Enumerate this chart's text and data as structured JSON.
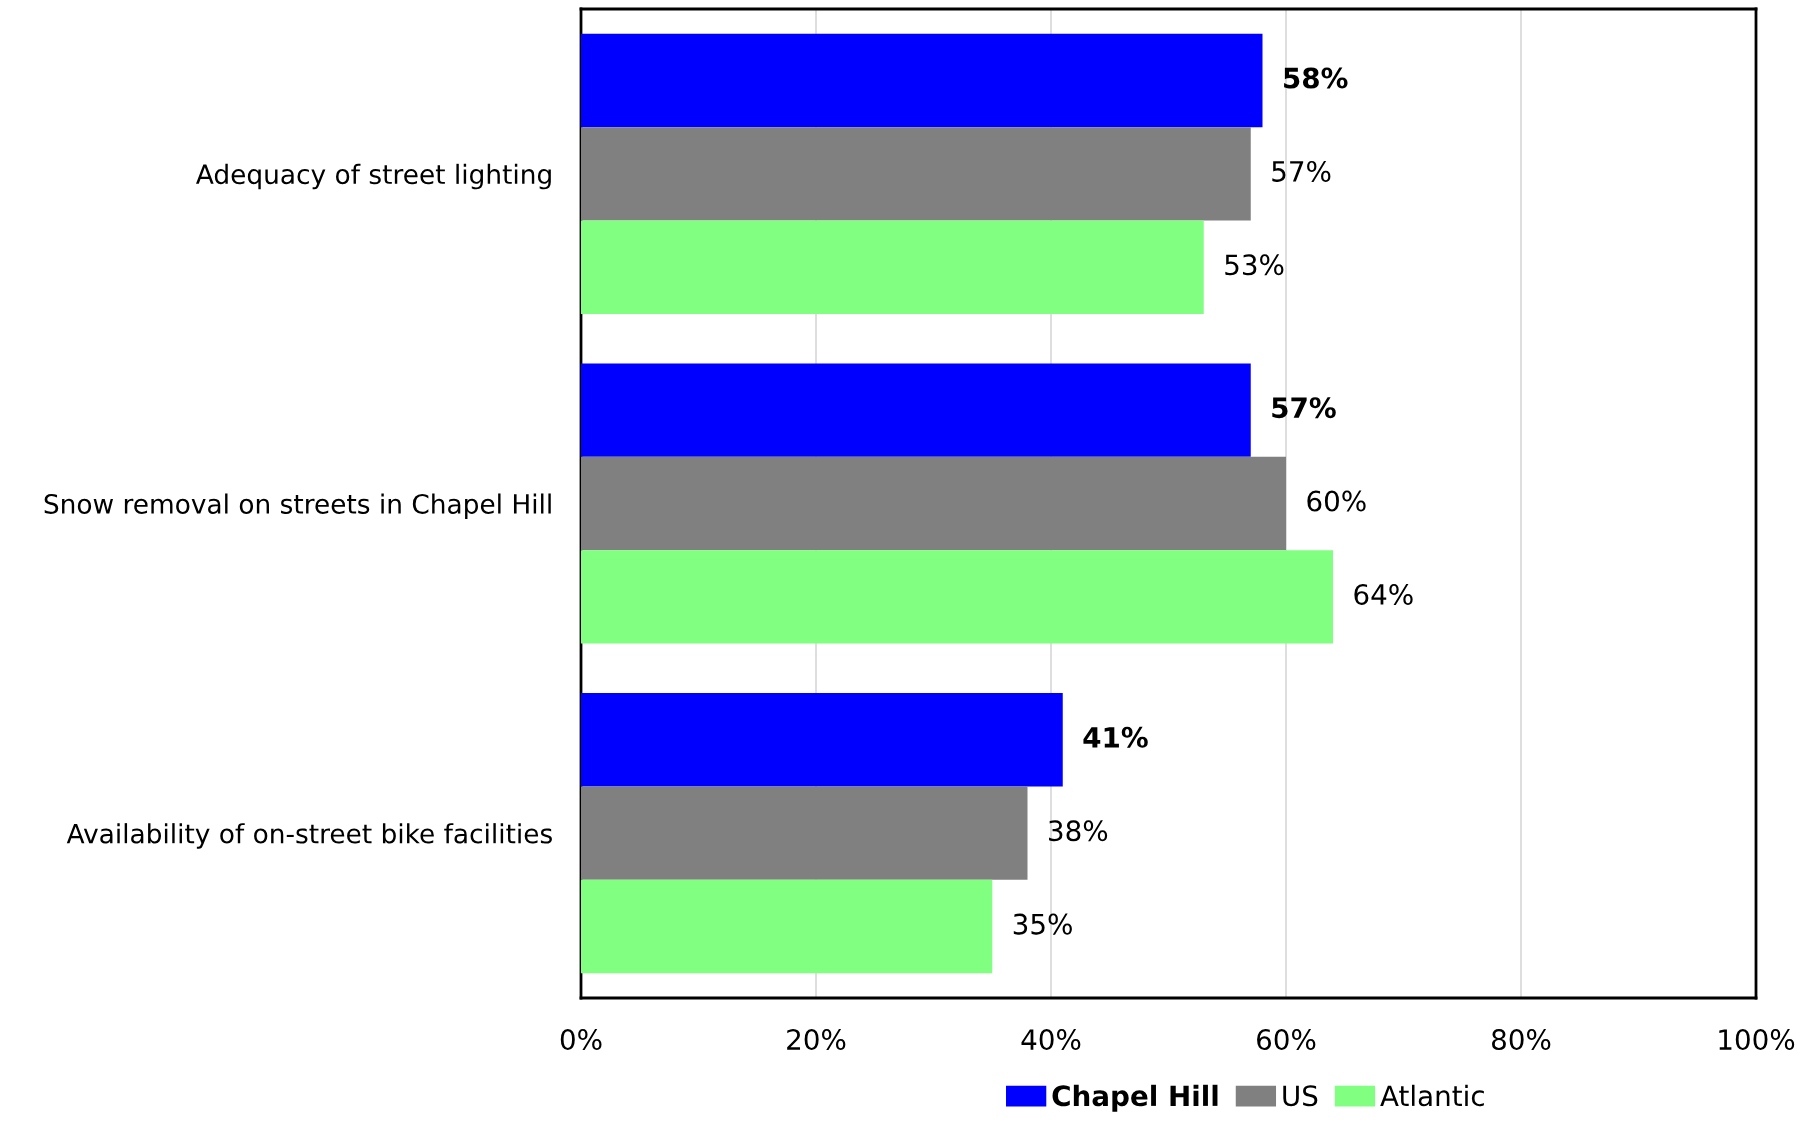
{
  "chart_data": {
    "type": "bar",
    "orientation": "horizontal",
    "categories": [
      "Adequacy of street lighting",
      "Snow removal on streets in Chapel Hill",
      "Availability of on-street bike facilities"
    ],
    "series": [
      {
        "name": "Chapel Hill",
        "color": "#0000ff",
        "values": [
          58,
          57,
          41
        ],
        "value_labels": [
          "58%",
          "57%",
          "41%"
        ]
      },
      {
        "name": "US",
        "color": "#808080",
        "values": [
          57,
          60,
          38
        ],
        "value_labels": [
          "57%",
          "60%",
          "38%"
        ]
      },
      {
        "name": "Atlantic",
        "color": "#80ff80",
        "values": [
          53,
          64,
          35
        ],
        "value_labels": [
          "53%",
          "64%",
          "35%"
        ]
      }
    ],
    "xlim": [
      0,
      100
    ],
    "xticks": [
      {
        "value": 0,
        "label": "0%"
      },
      {
        "value": 20,
        "label": "20%"
      },
      {
        "value": 40,
        "label": "40%"
      },
      {
        "value": 60,
        "label": "60%"
      },
      {
        "value": 80,
        "label": "80%"
      },
      {
        "value": 100,
        "label": "100%"
      }
    ],
    "grid": "x",
    "legend": "bottom"
  }
}
